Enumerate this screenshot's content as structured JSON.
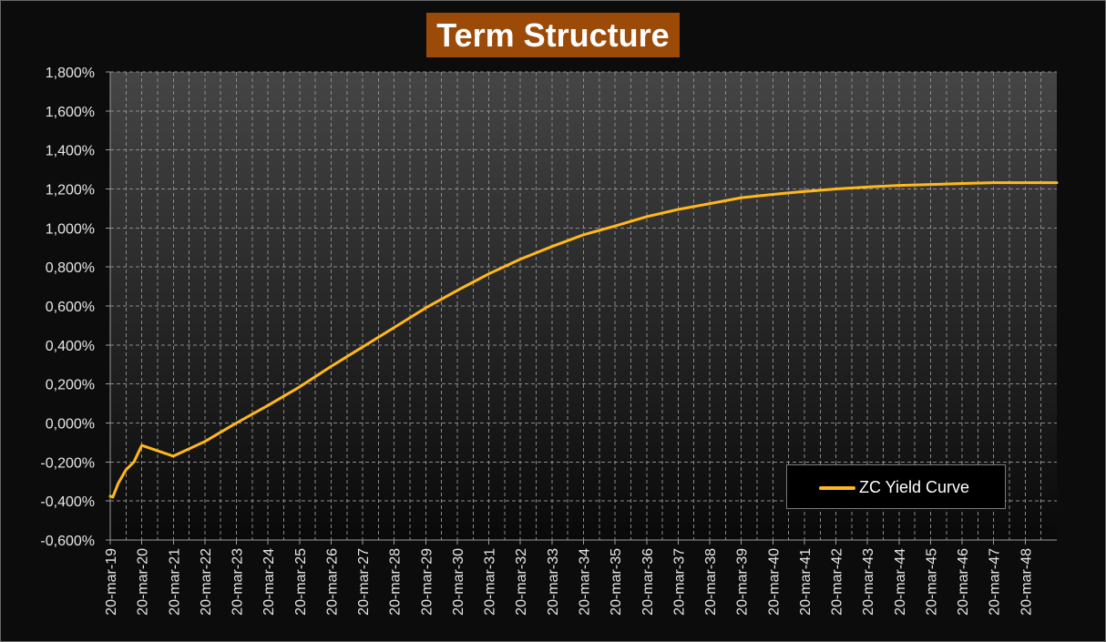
{
  "chart_data": {
    "type": "line",
    "title": "Term Structure",
    "xlabel": "",
    "ylabel": "",
    "ylim": [
      -0.6,
      1.8
    ],
    "yticks": [
      "1,800%",
      "1,600%",
      "1,400%",
      "1,200%",
      "1,000%",
      "0,800%",
      "0,600%",
      "0,400%",
      "0,200%",
      "0,000%",
      "-0,200%",
      "-0,400%",
      "-0,600%"
    ],
    "ytick_values": [
      1.8,
      1.6,
      1.4,
      1.2,
      1.0,
      0.8,
      0.6,
      0.4,
      0.2,
      0.0,
      -0.2,
      -0.4,
      -0.6
    ],
    "xlim": [
      2019.0,
      2049.0
    ],
    "xticks": [
      "20-mar-19",
      "20-mar-20",
      "20-mar-21",
      "20-mar-22",
      "20-mar-23",
      "20-mar-24",
      "20-mar-25",
      "20-mar-26",
      "20-mar-27",
      "20-mar-28",
      "20-mar-29",
      "20-mar-30",
      "20-mar-31",
      "20-mar-32",
      "20-mar-33",
      "20-mar-34",
      "20-mar-35",
      "20-mar-36",
      "20-mar-37",
      "20-mar-38",
      "20-mar-39",
      "20-mar-40",
      "20-mar-41",
      "20-mar-42",
      "20-mar-43",
      "20-mar-44",
      "20-mar-45",
      "20-mar-46",
      "20-mar-47",
      "20-mar-48"
    ],
    "grid": true,
    "legend_position": "bottom-right",
    "series": [
      {
        "name": "ZC Yield Curve",
        "color": "#ffb81c",
        "x": [
          2019.0,
          2019.08,
          2019.25,
          2019.5,
          2019.75,
          2020.0,
          2021.0,
          2022.0,
          2023.0,
          2024.0,
          2025.0,
          2026.0,
          2027.0,
          2028.0,
          2029.0,
          2030.0,
          2031.0,
          2032.0,
          2033.0,
          2034.0,
          2035.0,
          2036.0,
          2037.0,
          2038.0,
          2039.0,
          2040.0,
          2041.0,
          2042.0,
          2043.0,
          2044.0,
          2045.0,
          2046.0,
          2047.0,
          2048.0,
          2049.0
        ],
        "y": [
          -0.375,
          -0.38,
          -0.31,
          -0.24,
          -0.2,
          -0.115,
          -0.17,
          -0.095,
          0.0,
          0.09,
          0.185,
          0.29,
          0.39,
          0.49,
          0.59,
          0.68,
          0.765,
          0.84,
          0.905,
          0.965,
          1.01,
          1.058,
          1.095,
          1.125,
          1.155,
          1.172,
          1.187,
          1.2,
          1.21,
          1.218,
          1.223,
          1.228,
          1.232,
          1.232,
          1.232
        ]
      }
    ]
  }
}
